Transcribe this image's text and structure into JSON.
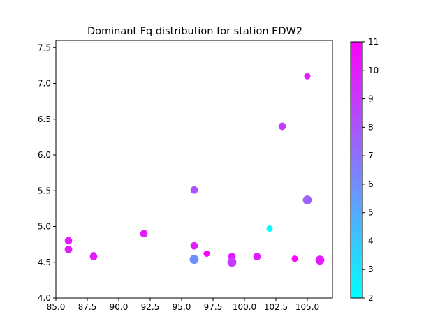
{
  "chart_data": {
    "type": "scatter",
    "title": "Dominant Fq distribution for station EDW2",
    "xlabel": "",
    "ylabel": "",
    "xlim": [
      85.0,
      107.0
    ],
    "ylim": [
      4.0,
      7.6
    ],
    "x_ticks": [
      "85.0",
      "87.5",
      "90.0",
      "92.5",
      "95.0",
      "97.5",
      "100.0",
      "102.5",
      "105.0"
    ],
    "y_ticks": [
      "4.0",
      "4.5",
      "5.0",
      "5.5",
      "6.0",
      "6.5",
      "7.0",
      "7.5"
    ],
    "colormap": "cool",
    "color_range": [
      2,
      11
    ],
    "colorbar_ticks": [
      "2",
      "3",
      "4",
      "5",
      "6",
      "7",
      "8",
      "9",
      "10",
      "11"
    ],
    "points": [
      {
        "x": 86,
        "y": 4.8,
        "c": 10,
        "s": 55
      },
      {
        "x": 86,
        "y": 4.68,
        "c": 10,
        "s": 55
      },
      {
        "x": 88,
        "y": 4.58,
        "c": 10,
        "s": 55
      },
      {
        "x": 88,
        "y": 4.6,
        "c": 10,
        "s": 40
      },
      {
        "x": 92,
        "y": 4.9,
        "c": 10,
        "s": 55
      },
      {
        "x": 96,
        "y": 5.51,
        "c": 8,
        "s": 55
      },
      {
        "x": 96,
        "y": 4.73,
        "c": 10,
        "s": 55
      },
      {
        "x": 96,
        "y": 4.54,
        "c": 6,
        "s": 80
      },
      {
        "x": 97,
        "y": 4.62,
        "c": 11,
        "s": 40
      },
      {
        "x": 99,
        "y": 4.58,
        "c": 10,
        "s": 55
      },
      {
        "x": 99,
        "y": 4.5,
        "c": 9,
        "s": 80
      },
      {
        "x": 101,
        "y": 4.58,
        "c": 10,
        "s": 55
      },
      {
        "x": 102,
        "y": 4.97,
        "c": 2,
        "s": 40
      },
      {
        "x": 103,
        "y": 6.4,
        "c": 9,
        "s": 55
      },
      {
        "x": 104,
        "y": 4.55,
        "c": 11,
        "s": 40
      },
      {
        "x": 105,
        "y": 7.1,
        "c": 10,
        "s": 40
      },
      {
        "x": 105,
        "y": 5.37,
        "c": 7.5,
        "s": 80
      },
      {
        "x": 106,
        "y": 4.53,
        "c": 10,
        "s": 80
      }
    ]
  }
}
